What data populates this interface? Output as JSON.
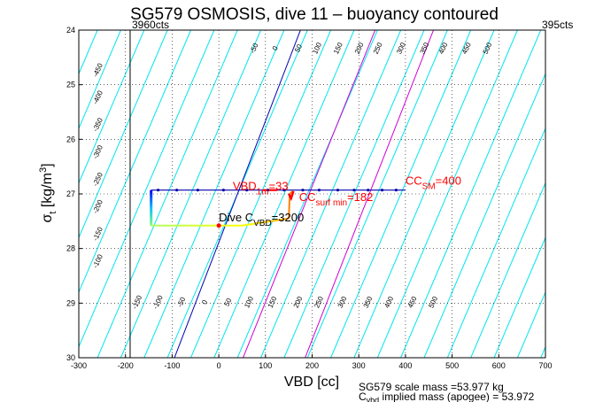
{
  "chart_data": {
    "type": "line",
    "title": "SG579 OSMOSIS, dive 11 – buoyancy contoured",
    "xlabel": "VBD [cc]",
    "ylabel_main": "σ",
    "ylabel_sub": "t",
    "ylabel_rest": " [kg/m",
    "ylabel_sup": "3",
    "ylabel_close": "]",
    "xlim": [
      -300,
      700
    ],
    "ylim": [
      24,
      30
    ],
    "y_reversed": true,
    "xticks": [
      -300,
      -200,
      -100,
      0,
      100,
      200,
      300,
      400,
      500,
      600,
      700
    ],
    "yticks": [
      24,
      25,
      26,
      27,
      28,
      29,
      30
    ],
    "grid": true,
    "top_left_label": "3960cts",
    "top_right_label": "395cts",
    "vline_left_x": -190,
    "buoyancy_contours": {
      "slope_cc_per_sigma": 50,
      "levels": [
        -550,
        -500,
        -450,
        -400,
        -350,
        -300,
        -250,
        -200,
        -150,
        -100,
        -50,
        0,
        50,
        100,
        150,
        200,
        250,
        300,
        350,
        400,
        450,
        500,
        550,
        600,
        650,
        700,
        750,
        800,
        850,
        900,
        950,
        1000,
        1050
      ],
      "reference_sigma": 27,
      "color": "#00e5ee",
      "top_labels": [
        "-450",
        "-400",
        "-350",
        "-300",
        "-250",
        "-200",
        "-150",
        "-100",
        "-50",
        "0",
        "50",
        "100",
        "150",
        "200",
        "250",
        "300",
        "350",
        "400",
        "450",
        "500"
      ],
      "bottom_labels": [
        "-150",
        "-100",
        "-50",
        "0",
        "50",
        "100",
        "150",
        "200",
        "250",
        "300",
        "350",
        "400",
        "450",
        "500"
      ]
    },
    "reference_lines": [
      {
        "color": "#0000b0",
        "x": [
          -95,
          175
        ],
        "y": [
          30,
          24
        ]
      },
      {
        "color": "#d000d0",
        "x": [
          52,
          335
        ],
        "y": [
          30,
          24
        ]
      },
      {
        "color": "#d000d0",
        "x": [
          185,
          460
        ],
        "y": [
          30,
          24
        ]
      }
    ],
    "dive_trace": {
      "top_x": [
        -145,
        400
      ],
      "top_y": [
        26.93,
        26.93
      ],
      "bottom_x": [
        -145,
        150
      ],
      "bottom_y": [
        27.58,
        27.45
      ],
      "marker_x": [
        -130,
        -90,
        -45,
        10,
        60,
        105,
        140,
        180,
        215,
        255,
        290,
        320,
        350,
        380
      ],
      "marker_y": [
        26.93,
        26.93,
        26.93,
        26.93,
        26.93,
        26.93,
        26.93,
        26.93,
        26.93,
        26.93,
        26.93,
        26.93,
        26.93,
        26.93
      ]
    },
    "annotations": [
      {
        "main": "VBD",
        "sub": "1m",
        "rest": "=33",
        "x": 30,
        "y": 26.93,
        "color": "#ff0000"
      },
      {
        "main": "CC",
        "sub": "surf min",
        "rest": "=182",
        "x": 172,
        "y": 27.13,
        "color": "#ff0000"
      },
      {
        "main": "CC",
        "sub": "SM",
        "rest": "=400",
        "x": 400,
        "y": 26.83,
        "color": "#ff0000"
      },
      {
        "main": "Dive C",
        "sub": "VBD",
        "rest": "=3200",
        "x": 0,
        "y": 27.5,
        "color": "#000000"
      }
    ],
    "footer": {
      "line1": "SG579 scale mass =53.977 kg",
      "line2_main": "C",
      "line2_sub": "vbd",
      "line2_rest": " implied mass (apogee) = 53.972"
    }
  }
}
